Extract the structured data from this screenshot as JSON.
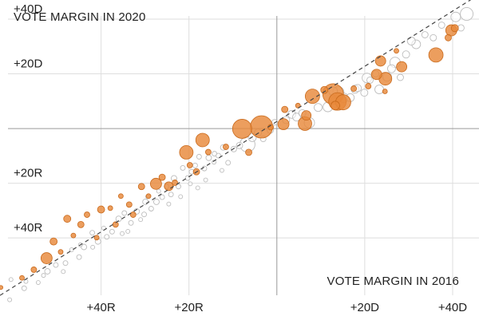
{
  "chart_data": {
    "type": "scatter",
    "xlabel": "VOTE MARGIN IN 2016",
    "ylabel": "VOTE MARGIN IN 2020",
    "xlim": [
      -63,
      46
    ],
    "ylim": [
      -70,
      47
    ],
    "grid": true,
    "x_ticks": [
      {
        "value": -40,
        "label": "+40R"
      },
      {
        "value": -20,
        "label": "+20R"
      },
      {
        "value": 20,
        "label": "+20D"
      },
      {
        "value": 40,
        "label": "+40D"
      }
    ],
    "y_ticks": [
      {
        "value": 40,
        "label": "+40D"
      },
      {
        "value": 20,
        "label": "+20D"
      },
      {
        "value": -20,
        "label": "+20R"
      },
      {
        "value": -40,
        "label": "+40R"
      }
    ],
    "colors": {
      "highlight": "#e8893a",
      "highlight_stroke": "#c96a1c",
      "other_fill": "#ffffff",
      "other_stroke": "#bdbdbd",
      "trend": "#444444"
    },
    "trend_line": {
      "from": [
        -63,
        -61
      ],
      "to": [
        46,
        49
      ]
    },
    "series": [
      {
        "highlighted": true,
        "points": [
          [
            -62.8,
            -58.1,
            2.5
          ],
          [
            -58,
            -54.6,
            3
          ],
          [
            -55.3,
            -51.6,
            3.5
          ],
          [
            -52.4,
            -47.4,
            7
          ],
          [
            -50.8,
            -41.3,
            4.5
          ],
          [
            -49.2,
            -45.1,
            3
          ],
          [
            -47.7,
            -33,
            4.5
          ],
          [
            -46.3,
            -39.1,
            3
          ],
          [
            -44.6,
            -35.1,
            4
          ],
          [
            -43.2,
            -31.5,
            3.5
          ],
          [
            -41,
            -39.9,
            3
          ],
          [
            -40,
            -29.6,
            4.5
          ],
          [
            -37.9,
            -29.1,
            3
          ],
          [
            -36.7,
            -35.1,
            3.5
          ],
          [
            -35.5,
            -24.7,
            3
          ],
          [
            -33.6,
            -27.8,
            3.5
          ],
          [
            -32.7,
            -31.5,
            3.5
          ],
          [
            -30.8,
            -21.2,
            4
          ],
          [
            -29.2,
            -24.7,
            3
          ],
          [
            -27.5,
            -20.2,
            7
          ],
          [
            -26.1,
            -17.8,
            4
          ],
          [
            -24.6,
            -21.1,
            5.5
          ],
          [
            -23.2,
            -19.8,
            3.5
          ],
          [
            -20.6,
            -8.7,
            8.5
          ],
          [
            -19.8,
            -13.4,
            3.5
          ],
          [
            -18.3,
            -15.8,
            4
          ],
          [
            -16.9,
            -4.2,
            8.5
          ],
          [
            -15.6,
            -8.6,
            3.5
          ],
          [
            -11.6,
            -6.7,
            3.5
          ],
          [
            -7.9,
            -0.1,
            12
          ],
          [
            -6.4,
            -8.7,
            4
          ],
          [
            -3.5,
            0.6,
            14
          ],
          [
            -1.4,
            0.5,
            3.5
          ],
          [
            1.5,
            1.6,
            7
          ],
          [
            1.8,
            7,
            4
          ],
          [
            4.8,
            8.4,
            3
          ],
          [
            6.4,
            1.8,
            8.5
          ],
          [
            6.7,
            4.8,
            6
          ],
          [
            8.1,
            11.8,
            9
          ],
          [
            10.8,
            14.1,
            4.5
          ],
          [
            13.3,
            8.4,
            5.5
          ],
          [
            12.8,
            12.6,
            13
          ],
          [
            13.8,
            9.9,
            11
          ],
          [
            15.1,
            9.6,
            9.5
          ],
          [
            17.5,
            14.6,
            3.5
          ],
          [
            20.8,
            15.5,
            3.5
          ],
          [
            22.7,
            19.8,
            6.5
          ],
          [
            23.6,
            24.7,
            6.5
          ],
          [
            24.7,
            18.2,
            8
          ],
          [
            24.6,
            13.6,
            3
          ],
          [
            27.2,
            28.4,
            3
          ],
          [
            28.4,
            22.6,
            6.5
          ],
          [
            36.2,
            26.9,
            9
          ],
          [
            39,
            33.2,
            4
          ],
          [
            39.7,
            35.9,
            7
          ],
          [
            40.5,
            36.7,
            4.5
          ]
        ]
      },
      {
        "highlighted": false,
        "points": [
          [
            -60.8,
            -62.6,
            2.5
          ],
          [
            -57.5,
            -58.4,
            3
          ],
          [
            -54.3,
            -56.3,
            2.5
          ],
          [
            -52.2,
            -52.2,
            3.5
          ],
          [
            -50.3,
            -49.9,
            3
          ],
          [
            -48.1,
            -49.2,
            3
          ],
          [
            -46.7,
            -44.3,
            2.5
          ],
          [
            -45,
            -47,
            3
          ],
          [
            -43.9,
            -43.3,
            3.5
          ],
          [
            -42,
            -38.1,
            3
          ],
          [
            -40.7,
            -41.3,
            3.5
          ],
          [
            -38.7,
            -39.6,
            3
          ],
          [
            -37.5,
            -37.7,
            3
          ],
          [
            -36,
            -33,
            3.5
          ],
          [
            -34.7,
            -30.9,
            3
          ],
          [
            -33.2,
            -34.5,
            3
          ],
          [
            -31.9,
            -30.3,
            3.5
          ],
          [
            -30.2,
            -31.4,
            3
          ],
          [
            -29.9,
            -26.8,
            3.5
          ],
          [
            -28.6,
            -29.3,
            3
          ],
          [
            -27.4,
            -26.8,
            3.5
          ],
          [
            -26.1,
            -25.1,
            3
          ],
          [
            -25.1,
            -21.2,
            3
          ],
          [
            -24.1,
            -24.1,
            3
          ],
          [
            -23.4,
            -18.2,
            3.5
          ],
          [
            -22.4,
            -21.2,
            3
          ],
          [
            -21.4,
            -14.4,
            3
          ],
          [
            -20.3,
            -18.1,
            3
          ],
          [
            -19.4,
            -15.8,
            3
          ],
          [
            -18.6,
            -13.5,
            3
          ],
          [
            -17.7,
            -10.3,
            3
          ],
          [
            -16.5,
            -14.6,
            3
          ],
          [
            -15.5,
            -10.7,
            3.5
          ],
          [
            -14.2,
            -9.2,
            3
          ],
          [
            -13.3,
            -9.9,
            3
          ],
          [
            -12.2,
            -6.9,
            3.5
          ],
          [
            -11.1,
            -12.5,
            3
          ],
          [
            -9.8,
            -7.5,
            3.5
          ],
          [
            -8.5,
            -6.2,
            4
          ],
          [
            -6.7,
            -5.8,
            9.5
          ],
          [
            -5.6,
            -3.3,
            5
          ],
          [
            -4.3,
            -1.5,
            4.5
          ],
          [
            -3.1,
            -3.8,
            3.5
          ],
          [
            -1.5,
            -0.6,
            4
          ],
          [
            -0.5,
            2.3,
            3.5
          ],
          [
            2.1,
            3.1,
            4.5
          ],
          [
            3.4,
            5.2,
            5
          ],
          [
            4.5,
            4.2,
            5
          ],
          [
            5.8,
            5.6,
            4.5
          ],
          [
            7.4,
            2.1,
            6.5
          ],
          [
            9.4,
            7.7,
            5
          ],
          [
            11.6,
            7.9,
            6
          ],
          [
            12.8,
            13.6,
            5.5
          ],
          [
            14,
            13.3,
            7
          ],
          [
            15.2,
            11.2,
            6
          ],
          [
            16.7,
            11.3,
            5
          ],
          [
            17.8,
            14.4,
            5
          ],
          [
            18.4,
            14.8,
            4.5
          ],
          [
            19.9,
            13.1,
            4.5
          ],
          [
            20.5,
            18.5,
            6
          ],
          [
            21.2,
            17.7,
            4
          ],
          [
            22.5,
            20,
            4
          ],
          [
            23.3,
            14.3,
            5.5
          ],
          [
            25.1,
            18.9,
            5.5
          ],
          [
            26.1,
            21.9,
            5
          ],
          [
            26.9,
            24.2,
            6.5
          ],
          [
            28.1,
            18.7,
            4
          ],
          [
            29.4,
            27.1,
            4.5
          ],
          [
            30.6,
            32,
            5
          ],
          [
            31.7,
            30.8,
            5.5
          ],
          [
            33.7,
            34.3,
            4
          ],
          [
            35.6,
            33.2,
            4
          ],
          [
            37.5,
            37.8,
            4
          ],
          [
            40.7,
            40.8,
            6
          ],
          [
            41.9,
            36.8,
            4
          ],
          [
            43.2,
            41.9,
            8
          ],
          [
            -64.1,
            -62.7,
            2.5
          ],
          [
            -60.5,
            -55.2,
            2.5
          ],
          [
            -57.1,
            -55.9,
            2.5
          ],
          [
            -53.1,
            -53.7,
            2.5
          ],
          [
            -48.6,
            -52.3,
            2.5
          ],
          [
            -44.7,
            -42.5,
            2.5
          ],
          [
            -41.9,
            -43.4,
            2.5
          ],
          [
            -39.4,
            -36.4,
            2.5
          ],
          [
            -35.2,
            -38.4,
            2.5
          ],
          [
            -33.9,
            -37.6,
            2.5
          ],
          [
            -31,
            -33.3,
            2.5
          ],
          [
            -29.4,
            -24.9,
            2.5
          ],
          [
            -26.9,
            -22.9,
            2.5
          ],
          [
            -24.6,
            -27.6,
            2.5
          ],
          [
            -21.9,
            -24.9,
            2.5
          ],
          [
            -19.7,
            -20.2,
            2.5
          ],
          [
            -18,
            -21.7,
            2.5
          ],
          [
            -16.2,
            -18.8,
            2.5
          ],
          [
            -14.3,
            -12.3,
            2.5
          ],
          [
            -12.5,
            -15.3,
            2.5
          ]
        ]
      }
    ]
  }
}
